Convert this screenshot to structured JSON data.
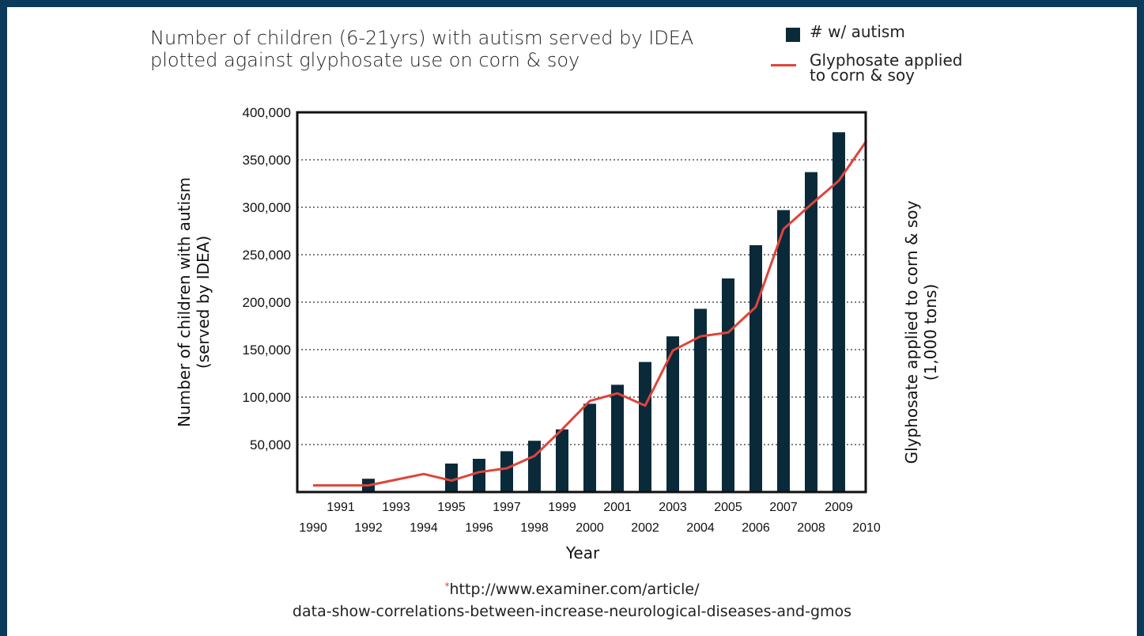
{
  "title_lines": [
    "Number of children (6-21yrs) with autism served by IDEA",
    "plotted against glyphosate use on corn & soy"
  ],
  "legend": {
    "bars_label": "# w/ autism",
    "line_label_lines": [
      "Glyphosate applied",
      "to corn & soy"
    ]
  },
  "colors": {
    "bar": "#0a2a3a",
    "line": "#e0443a",
    "frame": "#0b3a5b"
  },
  "source": {
    "marker": "*",
    "line1": "http://www.examiner.com/article/",
    "line2": "data-show-correlations-between-increase-neurological-diseases-and-gmos"
  },
  "chart_data": {
    "type": "bar",
    "xlabel": "Year",
    "ylabel_lines": [
      "Number of children with autism",
      "(served by IDEA)"
    ],
    "y2label_lines": [
      "Glyphosate applied to corn & soy",
      "(1,000 tons)"
    ],
    "ylim": [
      0,
      400000
    ],
    "yticks": [
      50000,
      100000,
      150000,
      200000,
      250000,
      300000,
      350000,
      400000
    ],
    "ytick_labels": [
      "50,000",
      "100,000",
      "150,000",
      "200,000",
      "250,000",
      "300,000",
      "350,000",
      "400,000"
    ],
    "xlim": [
      1990,
      2010
    ],
    "xticks_top": [
      "1991",
      "1993",
      "1995",
      "1997",
      "1999",
      "2001",
      "2003",
      "2005",
      "2007",
      "2009"
    ],
    "xticks_bottom": [
      "1990",
      "1992",
      "1994",
      "1996",
      "1998",
      "2000",
      "2002",
      "2004",
      "2006",
      "2008",
      "2010"
    ],
    "grid": "horizontal-dotted",
    "legend_position": "top-right",
    "series": [
      {
        "name": "# w/ autism",
        "kind": "bar",
        "x": [
          1992,
          1995,
          1996,
          1997,
          1998,
          1999,
          2000,
          2001,
          2002,
          2003,
          2004,
          2005,
          2006,
          2007,
          2008,
          2009
        ],
        "values": [
          14000,
          30000,
          35000,
          43000,
          54000,
          66000,
          93000,
          113000,
          137000,
          164000,
          193000,
          225000,
          260000,
          297000,
          337000,
          379000
        ]
      },
      {
        "name": "Glyphosate applied to corn & soy",
        "kind": "line",
        "x": [
          1990,
          1991,
          1992,
          1993,
          1994,
          1995,
          1996,
          1997,
          1998,
          1999,
          2000,
          2001,
          2002,
          2003,
          2004,
          2005,
          2006,
          2007,
          2008,
          2009,
          2010
        ],
        "values": [
          7000,
          7000,
          7000,
          13000,
          19000,
          12000,
          21000,
          25000,
          38000,
          66000,
          96000,
          104000,
          91000,
          149000,
          164000,
          168000,
          195000,
          277000,
          303000,
          328000,
          370000
        ]
      }
    ]
  }
}
